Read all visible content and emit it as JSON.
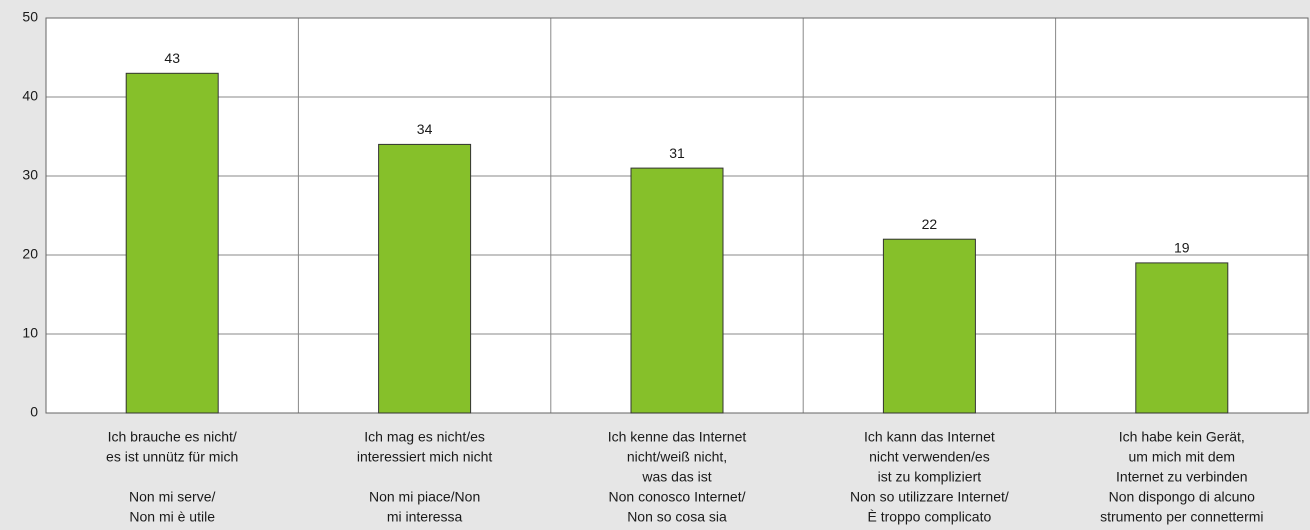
{
  "chart_data": {
    "type": "bar",
    "categories": [
      [
        [
          "Ich brauche es nicht/",
          "es ist unnütz für mich"
        ],
        [
          "Non mi serve/",
          "Non mi è utile"
        ]
      ],
      [
        [
          "Ich mag es nicht/es",
          "interessiert mich nicht"
        ],
        [
          "Non mi piace/Non",
          "mi interessa"
        ]
      ],
      [
        [
          "Ich kenne das Internet",
          "nicht/weiß nicht,",
          "was das ist"
        ],
        [
          "Non conosco Internet/",
          "Non so cosa sia"
        ]
      ],
      [
        [
          "Ich kann das Internet",
          "nicht verwenden/es",
          "ist zu kompliziert"
        ],
        [
          "Non so utilizzare Internet/",
          "È troppo complicato"
        ]
      ],
      [
        [
          "Ich habe kein Gerät,",
          "um mich mit dem",
          "Internet zu verbinden"
        ],
        [
          "Non dispongo di alcuno",
          "strumento per connettermi"
        ]
      ]
    ],
    "values": [
      43,
      34,
      31,
      22,
      19
    ],
    "color": "#86c02a",
    "ylim": [
      0,
      50
    ],
    "yticks": [
      0,
      10,
      20,
      30,
      40,
      50
    ],
    "grid": true
  }
}
